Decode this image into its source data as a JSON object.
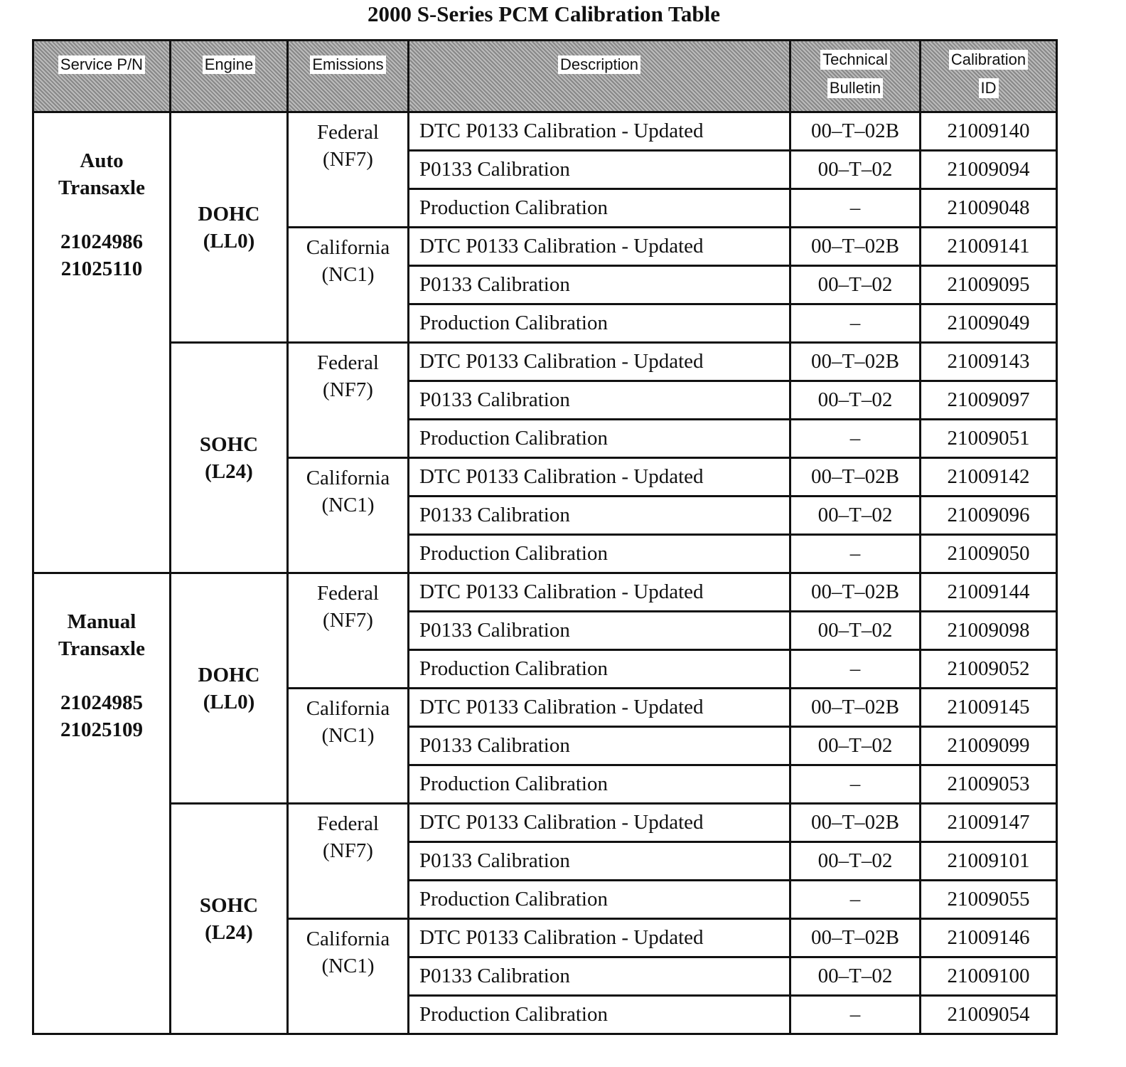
{
  "title": "2000 S-Series PCM Calibration Table",
  "headers": {
    "service": "Service  P/N",
    "engine": "Engine",
    "emissions": "Emissions",
    "description": "Description",
    "tb1": "Technical",
    "tb2": "Bulletin",
    "cal1": "Calibration",
    "cal2": "ID"
  },
  "transaxles": [
    {
      "name1": "Auto",
      "name2": "Transaxle",
      "pns": [
        "21024986",
        "21025110"
      ],
      "engines": [
        {
          "name": "DOHC",
          "code": "(LL0)",
          "emissions": [
            {
              "name": "Federal",
              "code": "(NF7)",
              "rows": [
                {
                  "desc": "DTC P0133 Calibration - Updated",
                  "tb": "00–T–02B",
                  "cal": "21009140"
                },
                {
                  "desc": "P0133 Calibration",
                  "tb": "00–T–02",
                  "cal": "21009094"
                },
                {
                  "desc": "Production Calibration",
                  "tb": "–",
                  "cal": "21009048"
                }
              ]
            },
            {
              "name": "California",
              "code": "(NC1)",
              "rows": [
                {
                  "desc": "DTC P0133 Calibration - Updated",
                  "tb": "00–T–02B",
                  "cal": "21009141"
                },
                {
                  "desc": "P0133 Calibration",
                  "tb": "00–T–02",
                  "cal": "21009095"
                },
                {
                  "desc": "Production Calibration",
                  "tb": "–",
                  "cal": "21009049"
                }
              ]
            }
          ]
        },
        {
          "name": "SOHC",
          "code": "(L24)",
          "emissions": [
            {
              "name": "Federal",
              "code": "(NF7)",
              "rows": [
                {
                  "desc": "DTC P0133 Calibration - Updated",
                  "tb": "00–T–02B",
                  "cal": "21009143"
                },
                {
                  "desc": "P0133 Calibration",
                  "tb": "00–T–02",
                  "cal": "21009097"
                },
                {
                  "desc": "Production Calibration",
                  "tb": "–",
                  "cal": "21009051"
                }
              ]
            },
            {
              "name": "California",
              "code": "(NC1)",
              "rows": [
                {
                  "desc": "DTC P0133 Calibration - Updated",
                  "tb": "00–T–02B",
                  "cal": "21009142"
                },
                {
                  "desc": "P0133 Calibration",
                  "tb": "00–T–02",
                  "cal": "21009096"
                },
                {
                  "desc": "Production Calibration",
                  "tb": "–",
                  "cal": "21009050"
                }
              ]
            }
          ]
        }
      ]
    },
    {
      "name1": "Manual",
      "name2": "Transaxle",
      "pns": [
        "21024985",
        "21025109"
      ],
      "engines": [
        {
          "name": "DOHC",
          "code": "(LL0)",
          "emissions": [
            {
              "name": "Federal",
              "code": "(NF7)",
              "rows": [
                {
                  "desc": "DTC P0133 Calibration - Updated",
                  "tb": "00–T–02B",
                  "cal": "21009144"
                },
                {
                  "desc": "P0133 Calibration",
                  "tb": "00–T–02",
                  "cal": "21009098"
                },
                {
                  "desc": "Production Calibration",
                  "tb": "–",
                  "cal": "21009052"
                }
              ]
            },
            {
              "name": "California",
              "code": "(NC1)",
              "rows": [
                {
                  "desc": "DTC P0133 Calibration - Updated",
                  "tb": "00–T–02B",
                  "cal": "21009145"
                },
                {
                  "desc": "P0133 Calibration",
                  "tb": "00–T–02",
                  "cal": "21009099"
                },
                {
                  "desc": "Production Calibration",
                  "tb": "–",
                  "cal": "21009053"
                }
              ]
            }
          ]
        },
        {
          "name": "SOHC",
          "code": "(L24)",
          "emissions": [
            {
              "name": "Federal",
              "code": "(NF7)",
              "rows": [
                {
                  "desc": "DTC P0133 Calibration - Updated",
                  "tb": "00–T–02B",
                  "cal": "21009147"
                },
                {
                  "desc": "P0133 Calibration",
                  "tb": "00–T–02",
                  "cal": "21009101"
                },
                {
                  "desc": "Production Calibration",
                  "tb": "–",
                  "cal": "21009055"
                }
              ]
            },
            {
              "name": "California",
              "code": "(NC1)",
              "rows": [
                {
                  "desc": "DTC P0133 Calibration - Updated",
                  "tb": "00–T–02B",
                  "cal": "21009146"
                },
                {
                  "desc": "P0133 Calibration",
                  "tb": "00–T–02",
                  "cal": "21009100"
                },
                {
                  "desc": "Production Calibration",
                  "tb": "–",
                  "cal": "21009054"
                }
              ]
            }
          ]
        }
      ]
    }
  ]
}
